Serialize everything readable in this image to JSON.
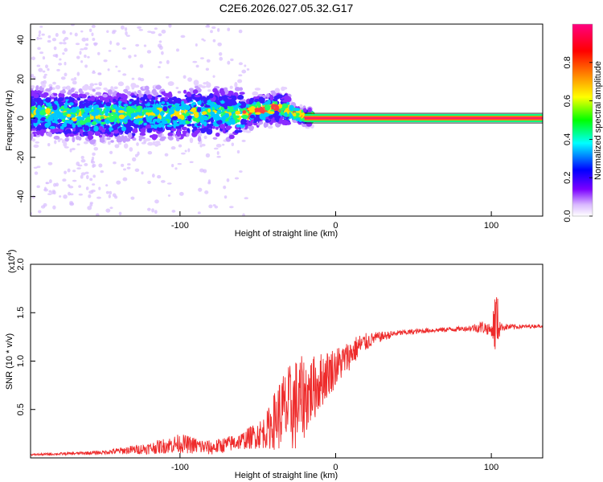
{
  "title": "C2E6.2026.027.05.32.G17",
  "chart_data": [
    {
      "type": "heatmap",
      "title": "C2E6.2026.027.05.32.G17",
      "xlabel": "Height of straight line (km)",
      "ylabel": "Frequency (Hz)",
      "xlim": [
        -196,
        133
      ],
      "ylim": [
        -50,
        48
      ],
      "x_ticks": [
        -100,
        0,
        100
      ],
      "x_tick_labels": [
        "-100",
        "0",
        "100"
      ],
      "y_ticks": [
        -40,
        -20,
        0,
        20,
        40
      ],
      "y_tick_labels": [
        "-40",
        "-20",
        "0",
        "20",
        "40"
      ],
      "colorbar": {
        "label": "Normalized spectral amplitude",
        "range": [
          0,
          1
        ],
        "ticks": [
          0.0,
          0.2,
          0.4,
          0.6,
          0.8
        ],
        "tick_labels": [
          "0.0",
          "0.2",
          "0.4",
          "0.6",
          "0.8"
        ],
        "colors": [
          "#ffffff",
          "#7b00ff",
          "#0000ff",
          "#00ffff",
          "#00ff00",
          "#ffff00",
          "#ff8000",
          "#ff0000",
          "#ff0080"
        ]
      },
      "ridge_center_hz": [
        [
          -196,
          3
        ],
        [
          -180,
          2
        ],
        [
          -160,
          1
        ],
        [
          -140,
          1
        ],
        [
          -120,
          2
        ],
        [
          -100,
          2
        ],
        [
          -80,
          3
        ],
        [
          -62,
          2
        ],
        [
          -50,
          4
        ],
        [
          -40,
          5
        ],
        [
          -33,
          5
        ],
        [
          -28,
          3
        ],
        [
          -22,
          1
        ],
        [
          -10,
          0
        ],
        [
          0,
          0
        ],
        [
          50,
          0
        ],
        [
          100,
          0
        ],
        [
          133,
          0
        ]
      ],
      "strong_tone": {
        "x_start": -20,
        "x_end": 133,
        "y": 0
      },
      "grid": false
    },
    {
      "type": "line",
      "xlabel": "Height of straight line (km)",
      "ylabel": "SNR (10 * v/v)",
      "y_multiplier_label": "(x10^4)",
      "xlim": [
        -196,
        133
      ],
      "ylim": [
        0,
        2.0
      ],
      "x_ticks": [
        -100,
        0,
        100
      ],
      "x_tick_labels": [
        "-100",
        "0",
        "100"
      ],
      "y_ticks": [
        0.5,
        1.0,
        1.5,
        2.0
      ],
      "y_tick_labels": [
        "0.5",
        "1.0",
        "1.5",
        "2.0"
      ],
      "series": [
        {
          "color": "#ee2b2b",
          "envelope": [
            [
              -196,
              0.03,
              0.02
            ],
            [
              -170,
              0.04,
              0.03
            ],
            [
              -150,
              0.05,
              0.04
            ],
            [
              -120,
              0.08,
              0.12
            ],
            [
              -100,
              0.12,
              0.2
            ],
            [
              -80,
              0.08,
              0.15
            ],
            [
              -60,
              0.15,
              0.18
            ],
            [
              -45,
              0.22,
              0.35
            ],
            [
              -35,
              0.35,
              0.8
            ],
            [
              -25,
              0.4,
              1.0
            ],
            [
              -15,
              0.6,
              0.7
            ],
            [
              -5,
              0.8,
              0.5
            ],
            [
              5,
              0.95,
              0.35
            ],
            [
              15,
              1.12,
              0.25
            ],
            [
              25,
              1.22,
              0.12
            ],
            [
              40,
              1.28,
              0.06
            ],
            [
              60,
              1.31,
              0.05
            ],
            [
              85,
              1.33,
              0.05
            ],
            [
              95,
              1.33,
              0.15
            ],
            [
              100,
              1.3,
              0.1
            ],
            [
              103,
              1.3,
              0.8
            ],
            [
              106,
              1.34,
              0.08
            ],
            [
              120,
              1.35,
              0.04
            ],
            [
              133,
              1.36,
              0.03
            ]
          ]
        }
      ],
      "grid": false
    }
  ]
}
